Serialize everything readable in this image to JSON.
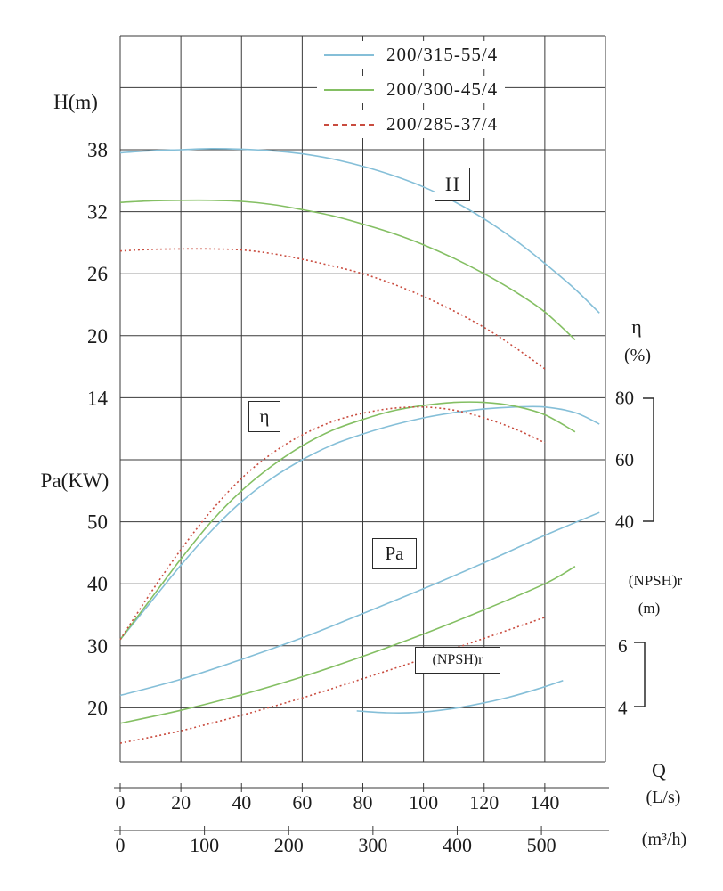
{
  "chart_data": {
    "type": "line",
    "title": "",
    "grid": true,
    "legend_position": "top-center-inside",
    "axes": {
      "H": {
        "title": "H(m)",
        "ticks": [
          38,
          32,
          26,
          20,
          14
        ],
        "range": [
          14,
          38
        ]
      },
      "Pa": {
        "title": "Pa(KW)",
        "ticks": [
          50,
          40,
          30,
          20
        ],
        "range": [
          20,
          50
        ]
      },
      "eta": {
        "title": "η",
        "unit": "(%)",
        "ticks": [
          80,
          60,
          40
        ],
        "range": [
          40,
          80
        ]
      },
      "NPSH": {
        "title": "(NPSH)r",
        "unit": "(m)",
        "ticks": [
          6,
          4
        ],
        "range": [
          4,
          6
        ]
      },
      "Q_ls": {
        "title": "Q",
        "unit": "(L/s)",
        "ticks": [
          0,
          20,
          40,
          60,
          80,
          100,
          120,
          140
        ],
        "range": [
          0,
          160
        ]
      },
      "Q_m3h": {
        "unit": "(m³/h)",
        "ticks": [
          0,
          100,
          200,
          300,
          400,
          500
        ],
        "range": [
          0,
          576
        ]
      }
    },
    "curve_labels": {
      "H": "H",
      "eta": "η",
      "Pa": "Pa",
      "NPSH": "(NPSH)r"
    },
    "series": [
      {
        "label": "200/315-55/4",
        "color": "#85bfd8",
        "dash": "",
        "points": {
          "H": [
            [
              0,
              37.7
            ],
            [
              10,
              37.9
            ],
            [
              20,
              38.0
            ],
            [
              30,
              38.1
            ],
            [
              40,
              38.05
            ],
            [
              50,
              37.9
            ],
            [
              60,
              37.6
            ],
            [
              70,
              37.1
            ],
            [
              80,
              36.4
            ],
            [
              90,
              35.5
            ],
            [
              100,
              34.4
            ],
            [
              110,
              33.0
            ],
            [
              120,
              31.3
            ],
            [
              130,
              29.3
            ],
            [
              140,
              27.0
            ],
            [
              150,
              24.5
            ],
            [
              158,
              22.2
            ]
          ],
          "eta": [
            [
              0,
              2
            ],
            [
              10,
              14
            ],
            [
              20,
              26
            ],
            [
              30,
              37
            ],
            [
              40,
              46.5
            ],
            [
              50,
              54
            ],
            [
              60,
              60
            ],
            [
              70,
              64.8
            ],
            [
              80,
              68.3
            ],
            [
              90,
              71.2
            ],
            [
              100,
              73.5
            ],
            [
              110,
              75.2
            ],
            [
              120,
              76.4
            ],
            [
              130,
              77
            ],
            [
              140,
              77
            ],
            [
              150,
              75.2
            ],
            [
              158,
              71.5
            ]
          ],
          "Pa": [
            [
              0,
              22
            ],
            [
              20,
              24.6
            ],
            [
              40,
              27.8
            ],
            [
              60,
              31.3
            ],
            [
              80,
              35.2
            ],
            [
              100,
              39.2
            ],
            [
              120,
              43.4
            ],
            [
              140,
              47.8
            ],
            [
              158,
              51.5
            ]
          ],
          "NPSH": [
            [
              78,
              3.9
            ],
            [
              88,
              3.84
            ],
            [
              98,
              3.85
            ],
            [
              108,
              3.95
            ],
            [
              118,
              4.12
            ],
            [
              128,
              4.34
            ],
            [
              138,
              4.62
            ],
            [
              146,
              4.88
            ]
          ]
        }
      },
      {
        "label": "200/300-45/4",
        "color": "#84bf63",
        "dash": "",
        "points": {
          "H": [
            [
              0,
              32.9
            ],
            [
              10,
              33.05
            ],
            [
              20,
              33.1
            ],
            [
              30,
              33.1
            ],
            [
              40,
              33.0
            ],
            [
              50,
              32.7
            ],
            [
              60,
              32.2
            ],
            [
              70,
              31.6
            ],
            [
              80,
              30.8
            ],
            [
              90,
              29.9
            ],
            [
              100,
              28.8
            ],
            [
              110,
              27.5
            ],
            [
              120,
              26.0
            ],
            [
              130,
              24.3
            ],
            [
              140,
              22.3
            ],
            [
              150,
              19.6
            ]
          ],
          "eta": [
            [
              0,
              2
            ],
            [
              10,
              15
            ],
            [
              20,
              28
            ],
            [
              30,
              40
            ],
            [
              40,
              50
            ],
            [
              50,
              58
            ],
            [
              60,
              64.5
            ],
            [
              70,
              69.5
            ],
            [
              80,
              73
            ],
            [
              90,
              75.8
            ],
            [
              100,
              77.5
            ],
            [
              110,
              78.5
            ],
            [
              120,
              78.5
            ],
            [
              130,
              77.3
            ],
            [
              140,
              74.5
            ],
            [
              150,
              69
            ]
          ],
          "Pa": [
            [
              0,
              17.5
            ],
            [
              20,
              19.6
            ],
            [
              40,
              22.1
            ],
            [
              60,
              25.0
            ],
            [
              80,
              28.3
            ],
            [
              100,
              31.9
            ],
            [
              120,
              35.8
            ],
            [
              140,
              40.0
            ],
            [
              150,
              42.8
            ]
          ]
        }
      },
      {
        "label": "200/285-37/4",
        "color": "#c94c3f",
        "dash": "2 3",
        "points": {
          "H": [
            [
              0,
              28.2
            ],
            [
              10,
              28.35
            ],
            [
              20,
              28.4
            ],
            [
              30,
              28.4
            ],
            [
              40,
              28.3
            ],
            [
              50,
              27.95
            ],
            [
              60,
              27.4
            ],
            [
              70,
              26.75
            ],
            [
              80,
              26.0
            ],
            [
              90,
              25.0
            ],
            [
              100,
              23.8
            ],
            [
              110,
              22.4
            ],
            [
              120,
              20.8
            ],
            [
              130,
              18.9
            ],
            [
              140,
              16.8
            ]
          ],
          "eta": [
            [
              0,
              2
            ],
            [
              10,
              17
            ],
            [
              20,
              31
            ],
            [
              30,
              43.5
            ],
            [
              40,
              54
            ],
            [
              50,
              62
            ],
            [
              60,
              68
            ],
            [
              70,
              72.3
            ],
            [
              80,
              75
            ],
            [
              90,
              76.6
            ],
            [
              100,
              77
            ],
            [
              110,
              76
            ],
            [
              120,
              73.5
            ],
            [
              130,
              70
            ],
            [
              140,
              65.5
            ]
          ],
          "Pa": [
            [
              0,
              14.3
            ],
            [
              20,
              16.3
            ],
            [
              40,
              18.8
            ],
            [
              60,
              21.6
            ],
            [
              80,
              24.7
            ],
            [
              100,
              27.9
            ],
            [
              120,
              31.2
            ],
            [
              140,
              34.6
            ]
          ]
        }
      }
    ]
  }
}
